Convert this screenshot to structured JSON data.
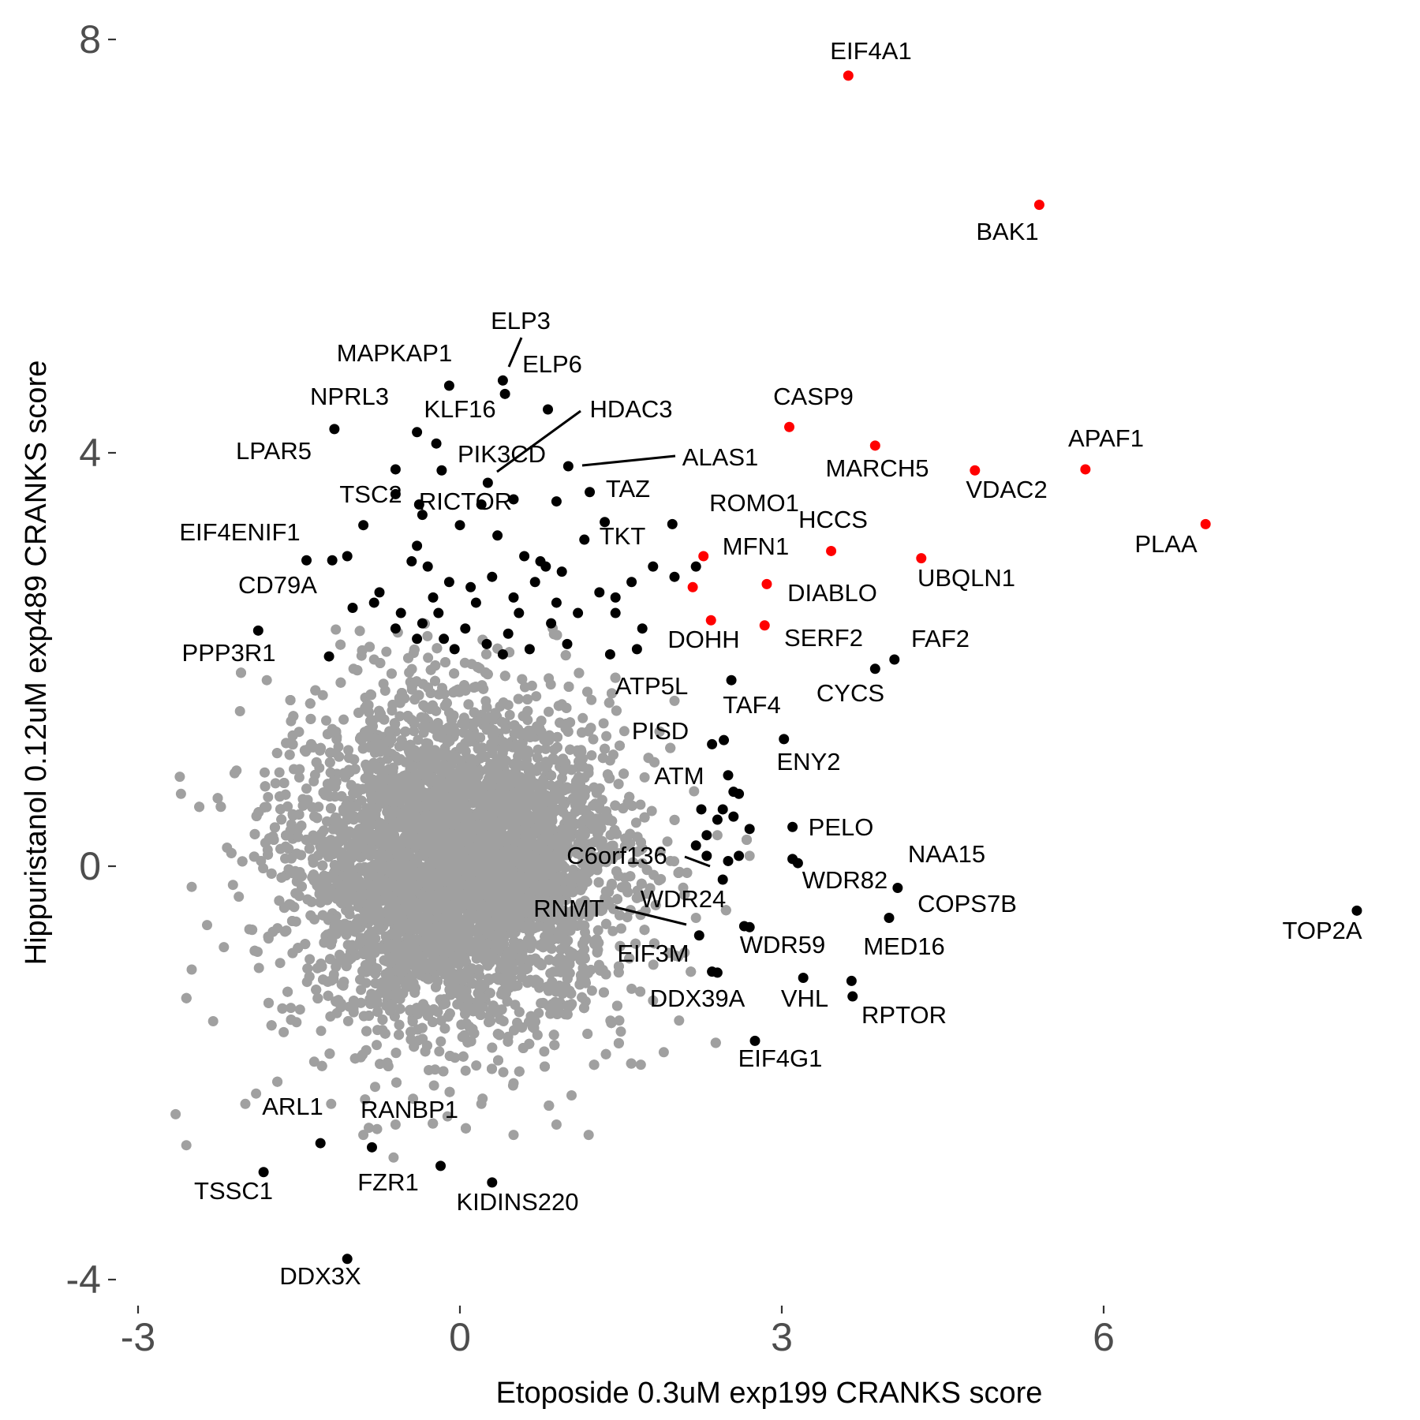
{
  "chart_data": {
    "type": "scatter",
    "title": "",
    "xlabel": "Etoposide 0.3uM exp199 CRANKS score",
    "ylabel": "Hippuristanol 0.12uM exp489 CRANKS score",
    "xlim": [
      -3.1,
      9.2
    ],
    "ylim": [
      -4.2,
      8.3
    ],
    "x_ticks": [
      "-3",
      "0",
      "3",
      "6"
    ],
    "y_ticks": [
      "8",
      "4",
      "0",
      "-4"
    ],
    "grid": false,
    "legend": "none",
    "colors": {
      "background": "#ffffff",
      "background_points": "#a0a0a0",
      "highlight": "#ff0000",
      "labeled": "#000000"
    },
    "background_cloud": {
      "description_values": {
        "center_x": 0.0,
        "center_y": 0.0,
        "sd_x": 0.75,
        "sd_y": 0.75,
        "approx_points": 9000
      },
      "outliers": [
        [
          -2.6,
          0.7
        ],
        [
          -2.5,
          -1.0
        ],
        [
          -2.65,
          -2.4
        ],
        [
          -2.55,
          -2.7
        ],
        [
          -2.5,
          -0.2
        ],
        [
          -2.3,
          -1.5
        ],
        [
          -2.1,
          0.9
        ],
        [
          -2.0,
          -2.3
        ],
        [
          -2.05,
          1.5
        ],
        [
          -1.9,
          -2.2
        ],
        [
          -1.8,
          1.8
        ],
        [
          -1.7,
          -0.6
        ],
        [
          -1.5,
          1.3
        ],
        [
          -1.4,
          -0.9
        ],
        [
          -0.8,
          2.0
        ],
        [
          -0.6,
          -2.5
        ],
        [
          0.5,
          -2.1
        ],
        [
          0.9,
          -2.5
        ],
        [
          1.5,
          -1.6
        ],
        [
          1.8,
          -1.3
        ],
        [
          2.0,
          1.6
        ],
        [
          2.2,
          -0.5
        ],
        [
          2.4,
          0.3
        ],
        [
          2.7,
          0.1
        ],
        [
          -1.2,
          -2.3
        ],
        [
          -0.9,
          -2.6
        ],
        [
          0.2,
          -2.3
        ],
        [
          0.5,
          -2.6
        ],
        [
          1.2,
          -2.6
        ],
        [
          1.9,
          -1.8
        ]
      ]
    },
    "highlighted_genes": [
      {
        "label": "EIF4A1",
        "x": 3.62,
        "y": 7.65
      },
      {
        "label": "BAK1",
        "x": 5.4,
        "y": 6.4
      },
      {
        "label": "CASP9",
        "x": 3.07,
        "y": 4.25
      },
      {
        "label": "MARCH5",
        "x": 3.87,
        "y": 4.07
      },
      {
        "label": "APAF1",
        "x": 5.83,
        "y": 3.84
      },
      {
        "label": "VDAC2",
        "x": 4.8,
        "y": 3.83
      },
      {
        "label": "PLAA",
        "x": 6.95,
        "y": 3.31
      },
      {
        "label": "HCCS",
        "x": 3.46,
        "y": 3.05
      },
      {
        "label": "UBQLN1",
        "x": 4.3,
        "y": 2.98
      },
      {
        "label": "MFN1",
        "x": 2.27,
        "y": 3.0
      },
      {
        "label": "DIABLO",
        "x": 2.86,
        "y": 2.73
      },
      {
        "label": "",
        "x": 2.17,
        "y": 2.7
      },
      {
        "label": "DOHH",
        "x": 2.34,
        "y": 2.38
      },
      {
        "label": "SERF2",
        "x": 2.84,
        "y": 2.33
      }
    ],
    "labeled_genes": [
      {
        "label": "ELP3",
        "x": 0.4,
        "y": 4.7
      },
      {
        "label": "ELP6",
        "x": 0.42,
        "y": 4.57
      },
      {
        "label": "MAPKAP1",
        "x": -0.1,
        "y": 4.65
      },
      {
        "label": "NPRL3",
        "x": -1.17,
        "y": 4.23
      },
      {
        "label": "KLF16",
        "x": -0.4,
        "y": 4.2
      },
      {
        "label": "",
        "x": -0.22,
        "y": 4.09
      },
      {
        "label": "HDAC3",
        "x": 0.82,
        "y": 4.42
      },
      {
        "label": "LPAR5",
        "x": -0.6,
        "y": 3.84
      },
      {
        "label": "PIK3CD",
        "x": 0.26,
        "y": 3.71
      },
      {
        "label": "ALAS1",
        "x": 1.01,
        "y": 3.87
      },
      {
        "label": "",
        "x": -0.17,
        "y": 3.83
      },
      {
        "label": "TSC2",
        "x": -0.38,
        "y": 3.5
      },
      {
        "label": "RICTOR",
        "x": 0.5,
        "y": 3.55
      },
      {
        "label": "TAZ",
        "x": 1.21,
        "y": 3.62
      },
      {
        "label": "",
        "x": 0.9,
        "y": 3.53
      },
      {
        "label": "ROMO1",
        "x": 1.98,
        "y": 3.31
      },
      {
        "label": "",
        "x": 1.35,
        "y": 3.33
      },
      {
        "label": "TKT",
        "x": 1.16,
        "y": 3.16
      },
      {
        "label": "EIF4ENIF1",
        "x": -1.43,
        "y": 2.96
      },
      {
        "label": "CD79A",
        "x": -1.19,
        "y": 2.96
      },
      {
        "label": "PPP3R1",
        "x": -1.88,
        "y": 2.28
      },
      {
        "label": "",
        "x": -1.22,
        "y": 2.03
      },
      {
        "label": "FAF2",
        "x": 4.05,
        "y": 2.0
      },
      {
        "label": "CYCS",
        "x": 3.87,
        "y": 1.91
      },
      {
        "label": "ATP5L",
        "x": 2.53,
        "y": 1.8
      },
      {
        "label": "TAF4",
        "x": 2.46,
        "y": 1.22
      },
      {
        "label": "PISD",
        "x": 2.35,
        "y": 1.18
      },
      {
        "label": "ENY2",
        "x": 3.02,
        "y": 1.23
      },
      {
        "label": "ATM",
        "x": 2.5,
        "y": 0.88
      },
      {
        "label": "PELO",
        "x": 3.1,
        "y": 0.38
      },
      {
        "label": "C6orf136",
        "x": 2.45,
        "y": -0.13
      },
      {
        "label": "WDR82",
        "x": 3.1,
        "y": 0.07
      },
      {
        "label": "",
        "x": 3.15,
        "y": 0.03
      },
      {
        "label": "NAA15",
        "x": 4.08,
        "y": -0.21
      },
      {
        "label": "COPS7B",
        "x": 4.0,
        "y": -0.5
      },
      {
        "label": "TOP2A",
        "x": 8.36,
        "y": -0.43
      },
      {
        "label": "RNMT",
        "x": 2.23,
        "y": -0.67
      },
      {
        "label": "WDR24",
        "x": 2.65,
        "y": -0.58
      },
      {
        "label": "WDR59",
        "x": 2.7,
        "y": -0.59
      },
      {
        "label": "EIF3M",
        "x": 2.4,
        "y": -1.03
      },
      {
        "label": "DDX39A",
        "x": 2.35,
        "y": -1.02
      },
      {
        "label": "VHL",
        "x": 3.2,
        "y": -1.08
      },
      {
        "label": "MED16",
        "x": 3.65,
        "y": -1.11
      },
      {
        "label": "RPTOR",
        "x": 3.66,
        "y": -1.26
      },
      {
        "label": "EIF4G1",
        "x": 2.75,
        "y": -1.69
      },
      {
        "label": "ARL1",
        "x": -1.3,
        "y": -2.68
      },
      {
        "label": "RANBP1",
        "x": -0.82,
        "y": -2.72
      },
      {
        "label": "TSSC1",
        "x": -1.83,
        "y": -2.96
      },
      {
        "label": "FZR1",
        "x": -0.18,
        "y": -2.9
      },
      {
        "label": "KIDINS220",
        "x": 0.3,
        "y": -3.06
      },
      {
        "label": "DDX3X",
        "x": -1.05,
        "y": -3.8
      }
    ],
    "unlabeled_black_points": [
      [
        -0.6,
        3.6
      ],
      [
        -0.35,
        3.4
      ],
      [
        0.0,
        3.3
      ],
      [
        0.2,
        3.5
      ],
      [
        0.35,
        3.2
      ],
      [
        0.6,
        3.0
      ],
      [
        0.8,
        2.9
      ],
      [
        -0.4,
        3.1
      ],
      [
        -0.3,
        2.9
      ],
      [
        -0.1,
        2.75
      ],
      [
        0.1,
        2.7
      ],
      [
        0.3,
        2.8
      ],
      [
        0.5,
        2.6
      ],
      [
        0.7,
        2.75
      ],
      [
        0.9,
        2.55
      ],
      [
        1.1,
        2.45
      ],
      [
        1.3,
        2.65
      ],
      [
        1.6,
        2.75
      ],
      [
        1.8,
        2.9
      ],
      [
        2.0,
        2.8
      ],
      [
        -0.9,
        3.3
      ],
      [
        -1.05,
        3.0
      ],
      [
        -0.75,
        2.65
      ],
      [
        -0.55,
        2.45
      ],
      [
        -0.35,
        2.35
      ],
      [
        -0.15,
        2.2
      ],
      [
        0.05,
        2.3
      ],
      [
        0.25,
        2.15
      ],
      [
        0.45,
        2.25
      ],
      [
        0.65,
        2.1
      ],
      [
        0.85,
        2.35
      ],
      [
        1.45,
        2.45
      ],
      [
        1.7,
        2.3
      ],
      [
        -1.0,
        2.5
      ],
      [
        -0.8,
        2.55
      ],
      [
        -0.6,
        2.3
      ],
      [
        -0.4,
        2.2
      ],
      [
        -0.2,
        2.45
      ],
      [
        0.15,
        2.55
      ],
      [
        0.55,
        2.45
      ],
      [
        1.0,
        2.15
      ],
      [
        1.4,
        2.05
      ],
      [
        1.65,
        2.1
      ],
      [
        0.4,
        2.05
      ],
      [
        -0.05,
        2.1
      ],
      [
        -0.25,
        2.6
      ],
      [
        -0.45,
        2.95
      ],
      [
        1.45,
        2.6
      ],
      [
        0.75,
        2.95
      ],
      [
        0.95,
        2.85
      ],
      [
        2.2,
        2.9
      ],
      [
        2.55,
        0.72
      ],
      [
        2.6,
        0.7
      ],
      [
        2.25,
        0.55
      ],
      [
        2.45,
        0.55
      ],
      [
        2.7,
        0.36
      ],
      [
        2.3,
        0.3
      ],
      [
        2.4,
        0.45
      ],
      [
        2.55,
        0.48
      ],
      [
        2.2,
        0.2
      ],
      [
        2.3,
        0.1
      ],
      [
        2.5,
        0.05
      ],
      [
        2.6,
        0.1
      ]
    ]
  }
}
